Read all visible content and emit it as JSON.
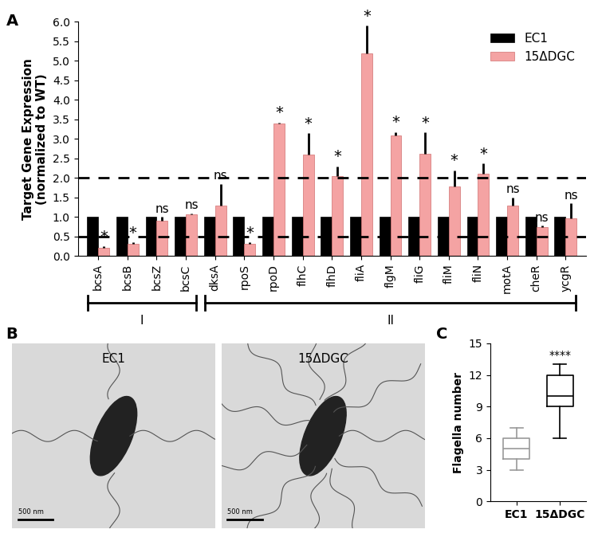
{
  "chart_data": [
    {
      "type": "bar",
      "panel_label": "A",
      "y_label": "Target Gene Expression\n(normalized to WT)",
      "categories": [
        "bcsA",
        "bcsB",
        "bcsZ",
        "bcsC",
        "dksA",
        "rpoS",
        "rpoD",
        "flhC",
        "flhD",
        "fliA",
        "flgM",
        "fliG",
        "fliM",
        "fliN",
        "motA",
        "cheR",
        "ycgR"
      ],
      "series": [
        {
          "name": "EC1",
          "color": "#000000",
          "values": [
            1,
            1,
            1,
            1,
            1,
            1,
            1,
            1,
            1,
            1,
            1,
            1,
            1,
            1,
            1,
            1,
            1
          ]
        },
        {
          "name": "15ΔDGC",
          "color": "#f4a3a3",
          "values": [
            0.22,
            0.32,
            0.9,
            1.08,
            1.3,
            0.32,
            3.4,
            2.6,
            2.05,
            5.2,
            3.08,
            2.62,
            1.78,
            2.12,
            1.3,
            0.75,
            0.97
          ],
          "errors": [
            0.03,
            0.03,
            0.1,
            0.02,
            0.55,
            0.03,
            0.02,
            0.55,
            0.25,
            0.7,
            0.1,
            0.55,
            0.42,
            0.25,
            0.2,
            0.03,
            0.38
          ]
        }
      ],
      "significance": [
        "*",
        "*",
        "ns",
        "ns",
        "ns",
        "*",
        "*",
        "*",
        "*",
        "*",
        "*",
        "*",
        "*",
        "*",
        "ns",
        "ns",
        "ns"
      ],
      "reference_lines": [
        2.0,
        0.5
      ],
      "groups": [
        {
          "label": "I",
          "start": "bcsA",
          "end": "bcsC"
        },
        {
          "label": "II",
          "start": "dksA",
          "end": "ycgR"
        }
      ],
      "ylim": [
        0,
        6.0
      ],
      "yticks": [
        {
          "value": 0,
          "label": "0.0"
        },
        {
          "value": 0.5,
          "label": "0.5"
        },
        {
          "value": 1.0,
          "label": "1.0"
        },
        {
          "value": 1.5,
          "label": "1.5"
        },
        {
          "value": 2.0,
          "label": "2.0"
        },
        {
          "value": 2.5,
          "label": "2.5"
        },
        {
          "value": 3.0,
          "label": "3.0"
        },
        {
          "value": 3.5,
          "label": "3.5"
        },
        {
          "value": 4.0,
          "label": "4.0"
        },
        {
          "value": 4.5,
          "label": "4.5"
        },
        {
          "value": 5.0,
          "label": "5.0"
        },
        {
          "value": 5.5,
          "label": "5.5"
        },
        {
          "value": 6.0,
          "label": "6.0"
        }
      ],
      "legend": "upper right"
    },
    {
      "type": "image",
      "panel_label": "B",
      "panels": [
        {
          "label": "EC1",
          "scale_bar": "500 nm"
        },
        {
          "label": "15ΔDGC",
          "scale_bar": "500 nm"
        }
      ]
    },
    {
      "type": "box",
      "panel_label": "C",
      "y_label": "Flagella number",
      "categories": [
        "EC1",
        "15ΔDGC"
      ],
      "colors": [
        "#999999",
        "#000000"
      ],
      "boxes": [
        {
          "whislo": 3,
          "q1": 4,
          "med": 5,
          "q3": 6,
          "whishi": 7
        },
        {
          "whislo": 6,
          "q1": 9,
          "med": 10,
          "q3": 12,
          "whishi": 13
        }
      ],
      "annotations": [
        {
          "category": "15ΔDGC",
          "text": "****"
        }
      ],
      "ylim": [
        0,
        15
      ],
      "yticks": [
        0,
        3,
        6,
        9,
        12,
        15
      ]
    }
  ]
}
